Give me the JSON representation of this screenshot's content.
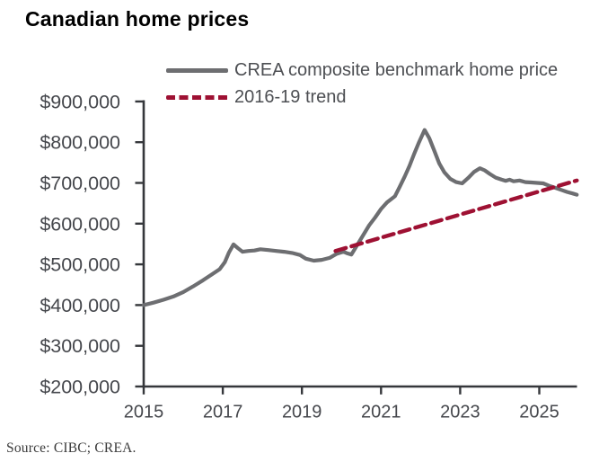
{
  "title": "Canadian home prices",
  "source": "Source: CIBC; CREA.",
  "colors": {
    "series": "#6d6e71",
    "trend": "#9e1133",
    "axis": "#35373b",
    "tick_label": "#45474c",
    "legend_text": "#4d4f53",
    "title_text": "#000000",
    "source_text": "#3a3a3a"
  },
  "chart_data": {
    "type": "line",
    "title": "Canadian home prices",
    "xlabel": "",
    "ylabel": "",
    "grid": false,
    "legend_position": "top",
    "x_axis": {
      "ticks": [
        2015,
        2017,
        2019,
        2021,
        2023,
        2025
      ],
      "range": [
        2015,
        2025.95
      ]
    },
    "y_axis": {
      "ticks": [
        200000,
        300000,
        400000,
        500000,
        600000,
        700000,
        800000,
        900000
      ],
      "range": [
        200000,
        900000
      ],
      "tick_format": "$#,##0"
    },
    "series": [
      {
        "name": "CREA composite benchmark home price",
        "style": "solid",
        "color_key": "series",
        "points": [
          [
            2015.0,
            400000
          ],
          [
            2015.25,
            406000
          ],
          [
            2015.5,
            413000
          ],
          [
            2015.75,
            421000
          ],
          [
            2016.0,
            432000
          ],
          [
            2016.25,
            446000
          ],
          [
            2016.5,
            461000
          ],
          [
            2016.75,
            477000
          ],
          [
            2016.92,
            488000
          ],
          [
            2017.05,
            505000
          ],
          [
            2017.15,
            528000
          ],
          [
            2017.27,
            549000
          ],
          [
            2017.38,
            540000
          ],
          [
            2017.5,
            531000
          ],
          [
            2017.65,
            533000
          ],
          [
            2017.8,
            534000
          ],
          [
            2017.95,
            537000
          ],
          [
            2018.15,
            535000
          ],
          [
            2018.35,
            533000
          ],
          [
            2018.55,
            531000
          ],
          [
            2018.75,
            528000
          ],
          [
            2018.95,
            523000
          ],
          [
            2019.1,
            514000
          ],
          [
            2019.3,
            509000
          ],
          [
            2019.5,
            511000
          ],
          [
            2019.7,
            516000
          ],
          [
            2019.88,
            526000
          ],
          [
            2020.05,
            531000
          ],
          [
            2020.15,
            527000
          ],
          [
            2020.25,
            524000
          ],
          [
            2020.4,
            548000
          ],
          [
            2020.55,
            572000
          ],
          [
            2020.7,
            596000
          ],
          [
            2020.85,
            615000
          ],
          [
            2021.0,
            636000
          ],
          [
            2021.15,
            652000
          ],
          [
            2021.35,
            667000
          ],
          [
            2021.47,
            690000
          ],
          [
            2021.6,
            716000
          ],
          [
            2021.72,
            742000
          ],
          [
            2021.84,
            772000
          ],
          [
            2021.96,
            800000
          ],
          [
            2022.1,
            830000
          ],
          [
            2022.22,
            810000
          ],
          [
            2022.35,
            778000
          ],
          [
            2022.47,
            748000
          ],
          [
            2022.6,
            726000
          ],
          [
            2022.75,
            710000
          ],
          [
            2022.9,
            702000
          ],
          [
            2023.05,
            699000
          ],
          [
            2023.2,
            712000
          ],
          [
            2023.35,
            727000
          ],
          [
            2023.5,
            736000
          ],
          [
            2023.62,
            731000
          ],
          [
            2023.75,
            722000
          ],
          [
            2023.9,
            713000
          ],
          [
            2024.05,
            708000
          ],
          [
            2024.15,
            705000
          ],
          [
            2024.25,
            708000
          ],
          [
            2024.35,
            704000
          ],
          [
            2024.5,
            706000
          ],
          [
            2024.65,
            702000
          ],
          [
            2024.8,
            701000
          ],
          [
            2024.95,
            700000
          ],
          [
            2025.1,
            699000
          ],
          [
            2025.25,
            693000
          ],
          [
            2025.4,
            688000
          ],
          [
            2025.55,
            683000
          ],
          [
            2025.7,
            678000
          ],
          [
            2025.85,
            674000
          ],
          [
            2025.95,
            671000
          ]
        ]
      },
      {
        "name": "2016-19 trend",
        "style": "dashed",
        "color_key": "trend",
        "points": [
          [
            2019.85,
            533000
          ],
          [
            2025.95,
            706000
          ]
        ]
      }
    ]
  }
}
